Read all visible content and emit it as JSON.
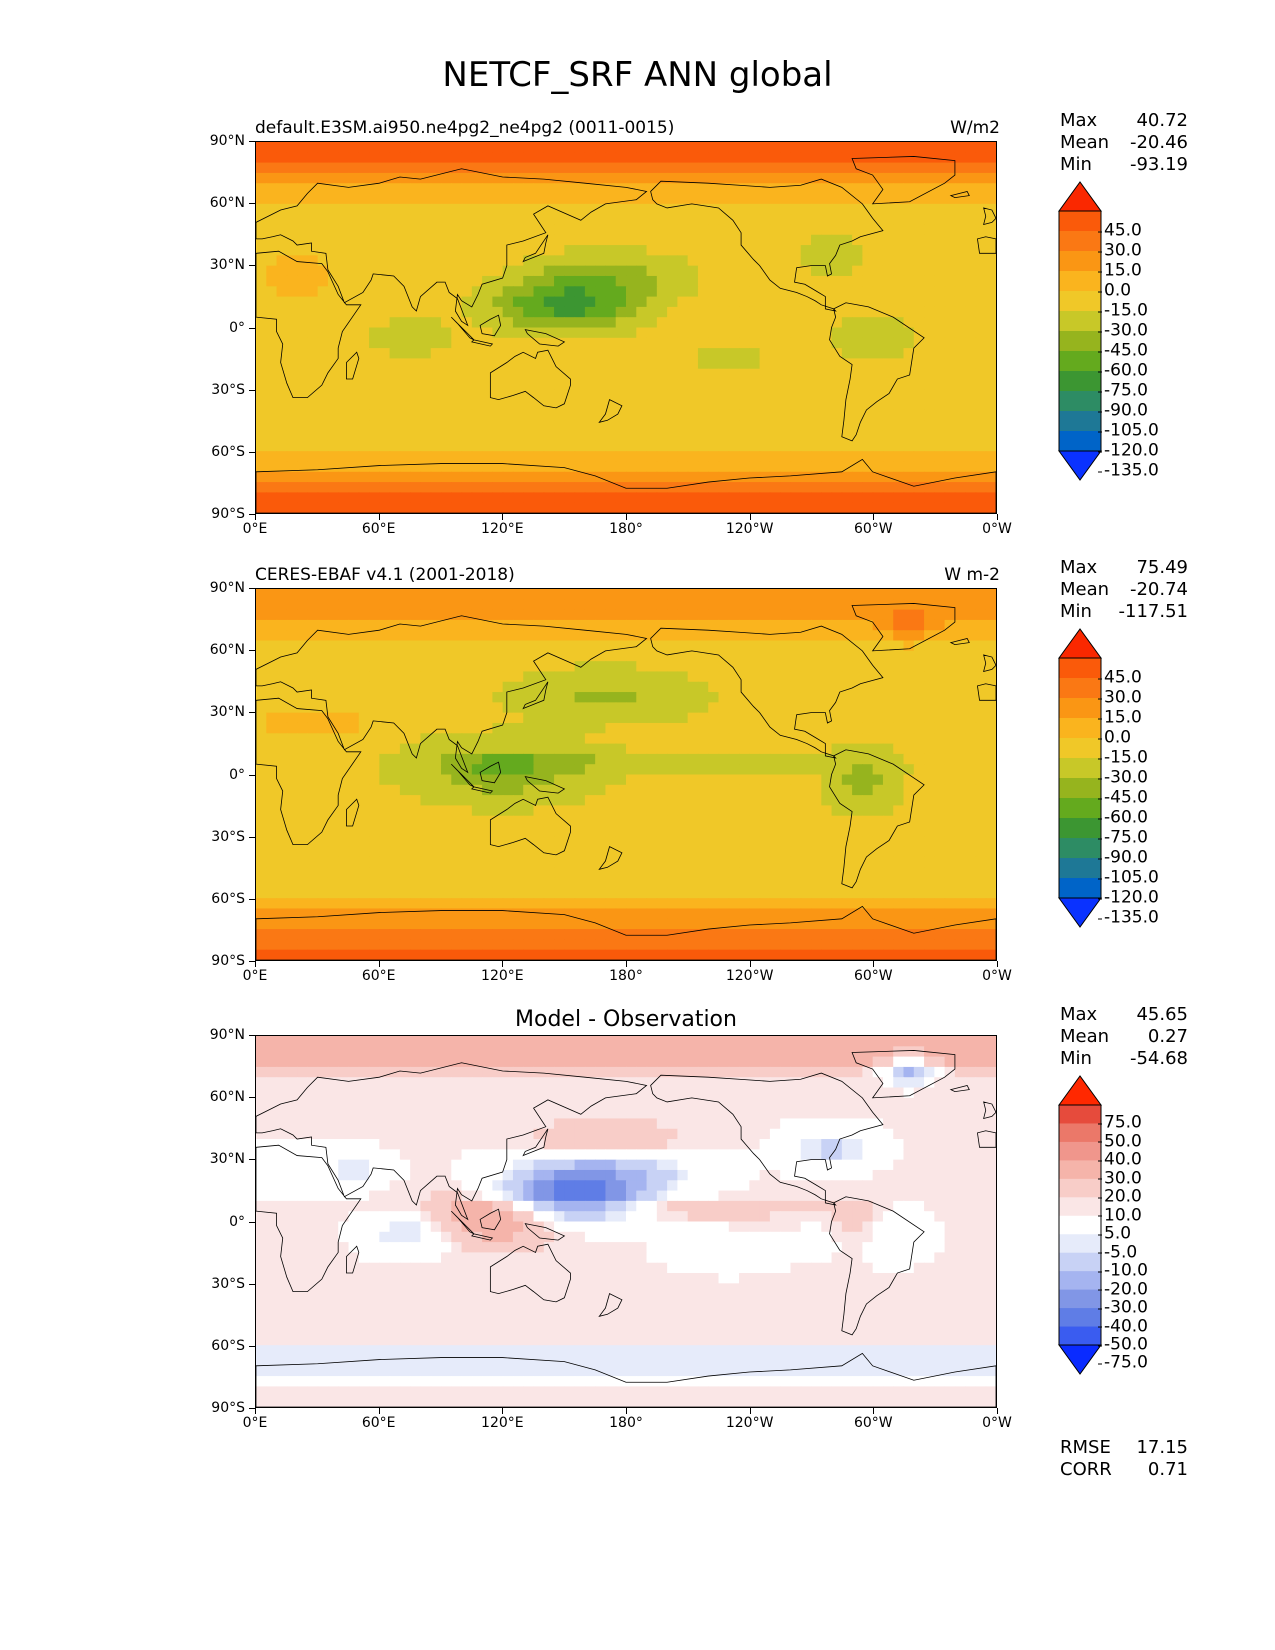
{
  "title": "NETCF_SRF ANN global",
  "lat_ticks": [
    "90°N",
    "60°N",
    "30°N",
    "0°",
    "30°S",
    "60°S",
    "90°S"
  ],
  "lon_ticks": [
    "0°E",
    "60°E",
    "120°E",
    "180°",
    "120°W",
    "60°W",
    "0°W"
  ],
  "panels": [
    {
      "title_left": "default.E3SM.ai950.ne4pg2_ne4pg2 (0011-0015)",
      "title_right": "W/m2",
      "title_center": "",
      "stats": {
        "max_label": "Max",
        "max": "40.72",
        "mean_label": "Mean",
        "mean": "-20.46",
        "min_label": "Min",
        "min": "-93.19"
      },
      "colorbar_labels": [
        "45.0",
        "30.0",
        "15.0",
        "0.0",
        "-15.0",
        "-30.0",
        "-45.0",
        "-60.0",
        "-75.0",
        "-90.0",
        "-105.0",
        "-120.0",
        "-135.0"
      ]
    },
    {
      "title_left": "CERES-EBAF v4.1 (2001-2018)",
      "title_right": "W m-2",
      "title_center": "",
      "stats": {
        "max_label": "Max",
        "max": "75.49",
        "mean_label": "Mean",
        "mean": "-20.74",
        "min_label": "Min",
        "min": "-117.51"
      },
      "colorbar_labels": [
        "45.0",
        "30.0",
        "15.0",
        "0.0",
        "-15.0",
        "-30.0",
        "-45.0",
        "-60.0",
        "-75.0",
        "-90.0",
        "-105.0",
        "-120.0",
        "-135.0"
      ]
    },
    {
      "title_left": "",
      "title_right": "",
      "title_center": "Model - Observation",
      "stats": {
        "max_label": "Max",
        "max": "45.65",
        "mean_label": "Mean",
        "mean": "0.27",
        "min_label": "Min",
        "min": "-54.68"
      },
      "colorbar_labels": [
        "75.0",
        "50.0",
        "40.0",
        "30.0",
        "20.0",
        "10.0",
        "5.0",
        "-5.0",
        "-10.0",
        "-20.0",
        "-30.0",
        "-40.0",
        "-50.0",
        "-75.0"
      ],
      "extra_stats": {
        "rmse_label": "RMSE",
        "rmse": "17.15",
        "corr_label": "CORR",
        "corr": "0.71"
      }
    }
  ],
  "colors": {
    "seq": [
      "#0a32ff",
      "#0064c8",
      "#1e7896",
      "#2d8c64",
      "#3c9632",
      "#64aa1e",
      "#96b41e",
      "#c8c828",
      "#f0c828",
      "#fab41e",
      "#fa9614",
      "#fa7814",
      "#fa5a0a",
      "#fa2800"
    ],
    "diff": [
      "#0a2bff",
      "#3a5cf0",
      "#5f7de6",
      "#8196e6",
      "#a5b4f0",
      "#c8d2f5",
      "#e6ebfa",
      "#ffffff",
      "#fae6e6",
      "#f8cdc8",
      "#f5b4aa",
      "#f0968c",
      "#eb7869",
      "#e64b3c",
      "#ff2800"
    ]
  }
}
